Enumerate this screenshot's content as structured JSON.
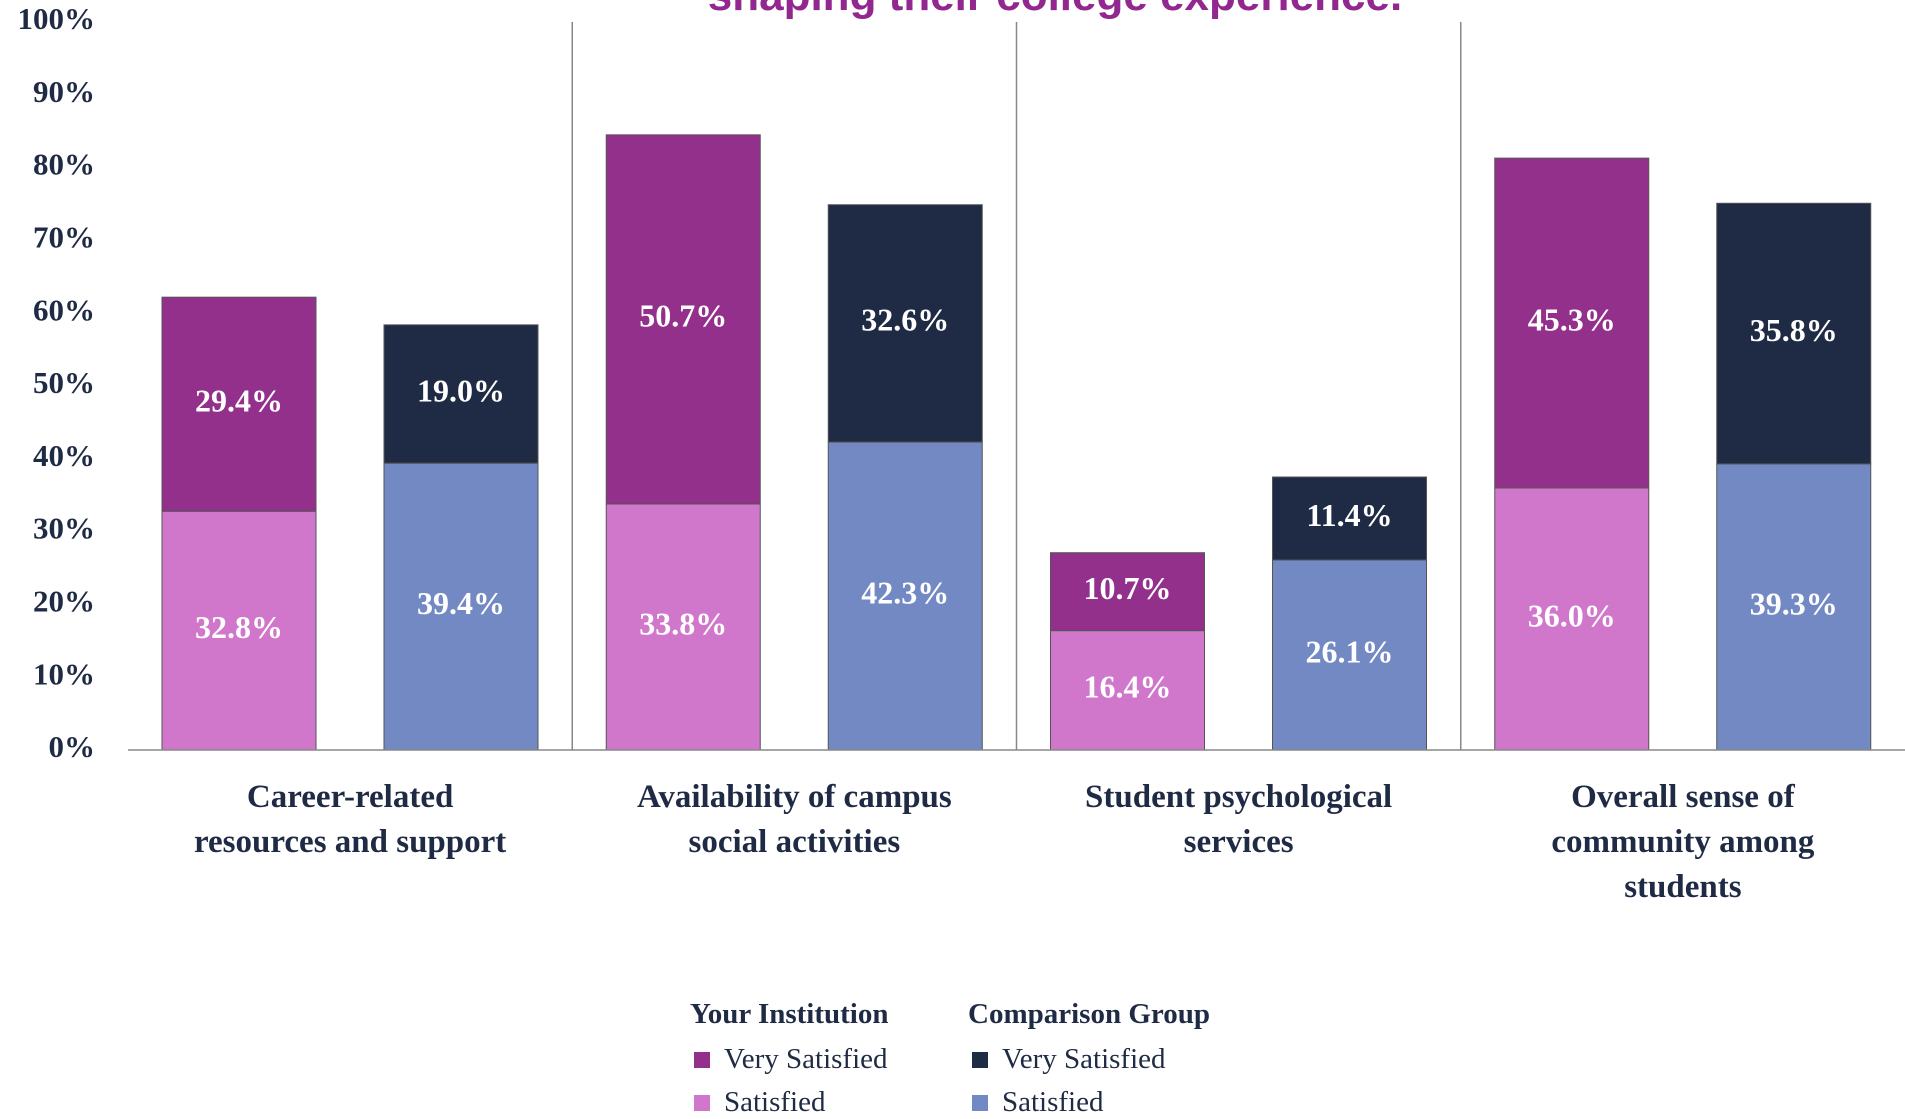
{
  "chart_data": {
    "type": "stacked_bar",
    "title": "shaping their college experience.",
    "categories": [
      "Career-related resources and support",
      "Availability of campus social activities",
      "Student psychological services",
      "Overall sense of community among students"
    ],
    "series": [
      {
        "name": "Satisfied",
        "stack": "Your Institution",
        "color": "#d077cc",
        "values": [
          32.8,
          33.8,
          16.4,
          36.0
        ],
        "value_labels": [
          "32.8%",
          "33.8%",
          "16.4%",
          "36.0%"
        ]
      },
      {
        "name": "Very Satisfied",
        "stack": "Your Institution",
        "color": "#92308c",
        "values": [
          29.4,
          50.7,
          10.7,
          45.3
        ],
        "value_labels": [
          "29.4%",
          "50.7%",
          "10.7%",
          "45.3%"
        ]
      },
      {
        "name": "Satisfied",
        "stack": "Comparison Group",
        "color": "#7289c4",
        "values": [
          39.4,
          42.3,
          26.1,
          39.3
        ],
        "value_labels": [
          "39.4%",
          "42.3%",
          "26.1%",
          "39.3%"
        ]
      },
      {
        "name": "Very Satisfied",
        "stack": "Comparison Group",
        "color": "#1f2a44",
        "values": [
          19.0,
          32.6,
          11.4,
          35.8
        ],
        "value_labels": [
          "19.0%",
          "32.6%",
          "11.4%",
          "35.8%"
        ]
      }
    ],
    "ylim": [
      0,
      100
    ],
    "yticks": [
      {
        "value": 0,
        "label": "0%"
      },
      {
        "value": 10,
        "label": "10%"
      },
      {
        "value": 20,
        "label": "20%"
      },
      {
        "value": 30,
        "label": "30%"
      },
      {
        "value": 40,
        "label": "40%"
      },
      {
        "value": 50,
        "label": "50%"
      },
      {
        "value": 60,
        "label": "60%"
      },
      {
        "value": 70,
        "label": "70%"
      },
      {
        "value": 80,
        "label": "80%"
      },
      {
        "value": 90,
        "label": "90%"
      },
      {
        "value": 100,
        "label": "100%"
      }
    ],
    "grid": false
  }
}
